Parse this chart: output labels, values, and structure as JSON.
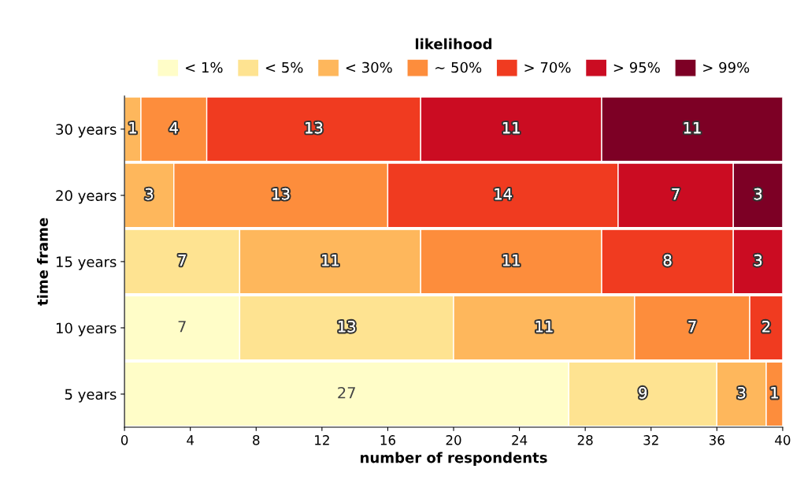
{
  "chart_data": {
    "type": "bar",
    "orientation": "horizontal",
    "stacked": true,
    "xlabel": "number of respondents",
    "ylabel": "time frame",
    "legend_title": "likelihood",
    "legend": "top",
    "categories": [
      "30 years",
      "20 years",
      "15 years",
      "10 years",
      "5 years"
    ],
    "series": [
      {
        "name": "< 1%",
        "color": "#fffdc8",
        "values": [
          null,
          null,
          null,
          7,
          27
        ]
      },
      {
        "name": "< 5%",
        "color": "#fee391",
        "values": [
          null,
          null,
          7,
          13,
          9
        ]
      },
      {
        "name": "< 30%",
        "color": "#feb75c",
        "values": [
          1,
          3,
          11,
          11,
          3
        ]
      },
      {
        "name": "~ 50%",
        "color": "#fd8d3c",
        "values": [
          4,
          13,
          11,
          7,
          1
        ]
      },
      {
        "name": "> 70%",
        "color": "#f03b20",
        "values": [
          13,
          14,
          8,
          2,
          null
        ]
      },
      {
        "name": "> 95%",
        "color": "#cb0c22",
        "values": [
          11,
          7,
          3,
          null,
          null
        ]
      },
      {
        "name": "> 99%",
        "color": "#7d0025",
        "values": [
          11,
          3,
          null,
          null,
          null
        ]
      }
    ],
    "xlim": [
      0,
      40
    ],
    "xticks": [
      0,
      4,
      8,
      12,
      16,
      20,
      24,
      28,
      32,
      36,
      40
    ],
    "data_labels": true,
    "grid": false
  }
}
